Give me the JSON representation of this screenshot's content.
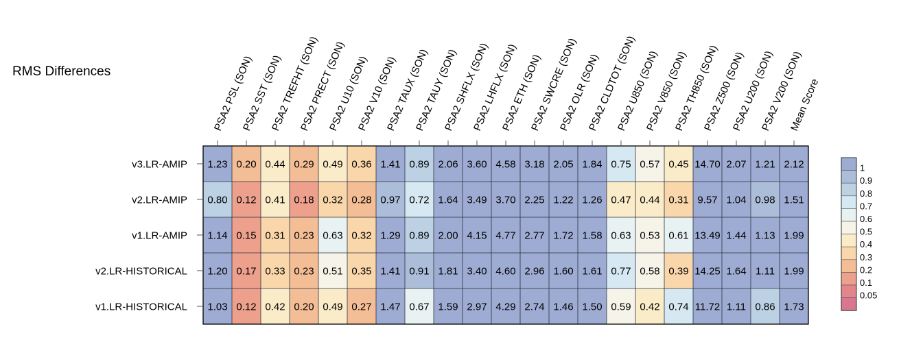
{
  "chart_data": {
    "type": "heatmap",
    "title": "RMS Differences",
    "columns": [
      "PSA2 PSL (SON)",
      "PSA2 SST (SON)",
      "PSA2 TREFHT (SON)",
      "PSA2 PRECT (SON)",
      "PSA2 U10 (SON)",
      "PSA2 V10 (SON)",
      "PSA2 TAUX (SON)",
      "PSA2 TAUY (SON)",
      "PSA2 SHFLX (SON)",
      "PSA2 LHFLX (SON)",
      "PSA2 ETH (SON)",
      "PSA2 SWCRE (SON)",
      "PSA2 OLR (SON)",
      "PSA2 CLDTOT (SON)",
      "PSA2 U850 (SON)",
      "PSA2 V850 (SON)",
      "PSA2 TH850 (SON)",
      "PSA2 Z500 (SON)",
      "PSA2 U200 (SON)",
      "PSA2 V200 (SON)",
      "Mean Score"
    ],
    "rows": [
      "v3.LR-AMIP",
      "v2.LR-AMIP",
      "v1.LR-AMIP",
      "v2.LR-HISTORICAL",
      "v1.LR-HISTORICAL"
    ],
    "values": [
      [
        "1.23",
        "0.20",
        "0.44",
        "0.29",
        "0.49",
        "0.36",
        "1.41",
        "0.89",
        "2.06",
        "3.60",
        "4.58",
        "3.18",
        "2.05",
        "1.84",
        "0.75",
        "0.57",
        "0.45",
        "14.70",
        "2.07",
        "1.21",
        "2.12"
      ],
      [
        "0.80",
        "0.12",
        "0.41",
        "0.18",
        "0.32",
        "0.28",
        "0.97",
        "0.72",
        "1.64",
        "3.49",
        "3.70",
        "2.25",
        "1.22",
        "1.26",
        "0.47",
        "0.44",
        "0.31",
        "9.57",
        "1.04",
        "0.98",
        "1.51"
      ],
      [
        "1.14",
        "0.15",
        "0.31",
        "0.23",
        "0.63",
        "0.32",
        "1.29",
        "0.89",
        "2.00",
        "4.15",
        "4.77",
        "2.77",
        "1.72",
        "1.58",
        "0.63",
        "0.53",
        "0.61",
        "13.49",
        "1.44",
        "1.13",
        "1.99"
      ],
      [
        "1.20",
        "0.17",
        "0.33",
        "0.23",
        "0.51",
        "0.35",
        "1.41",
        "0.91",
        "1.81",
        "3.40",
        "4.60",
        "2.96",
        "1.60",
        "1.61",
        "0.77",
        "0.58",
        "0.39",
        "14.25",
        "1.64",
        "1.11",
        "1.99"
      ],
      [
        "1.03",
        "0.12",
        "0.42",
        "0.20",
        "0.49",
        "0.27",
        "1.47",
        "0.67",
        "1.59",
        "2.97",
        "4.29",
        "2.74",
        "1.46",
        "1.50",
        "0.59",
        "0.42",
        "0.74",
        "11.72",
        "1.11",
        "0.86",
        "1.73"
      ]
    ],
    "colorbar": {
      "tick_labels": [
        "1",
        "0.9",
        "0.8",
        "0.7",
        "0.6",
        "0.5",
        "0.4",
        "0.3",
        "0.2",
        "0.1",
        "0.05"
      ],
      "bounds": [
        1,
        0.9,
        0.8,
        0.7,
        0.6,
        0.5,
        0.4,
        0.3,
        0.2,
        0.1,
        0.05,
        0
      ],
      "colors": [
        "#9eabd2",
        "#acbdd9",
        "#bcd2e4",
        "#d6e8f1",
        "#e9f2f2",
        "#f6f4e8",
        "#fbecc9",
        "#f9d7ab",
        "#f3bd96",
        "#eda08c",
        "#e4848c",
        "#d87792"
      ],
      "above_max_color": "#9eabd2",
      "placement": "right"
    },
    "grid": true
  }
}
